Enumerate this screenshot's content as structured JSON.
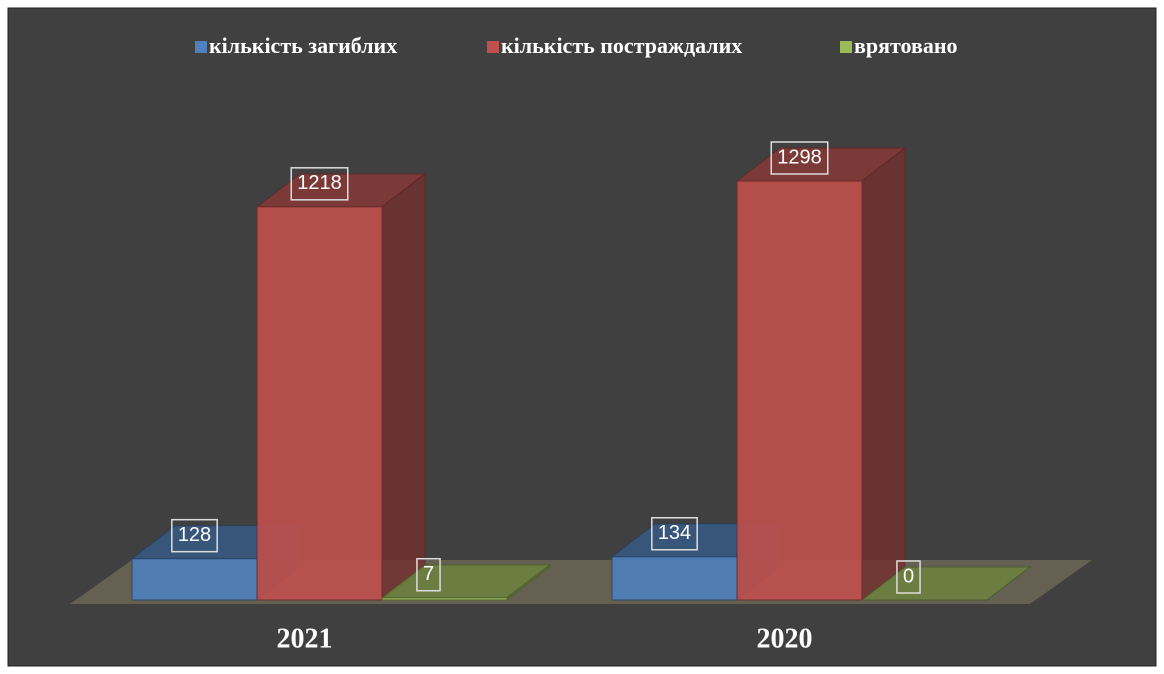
{
  "chart_data": {
    "type": "bar3d",
    "categories": [
      "2021",
      "2020"
    ],
    "series": [
      {
        "name": "кількість загиблих",
        "color": "#4f81bd",
        "values": [
          128,
          134
        ]
      },
      {
        "name": "кількість постраждалих",
        "color": "#c0504d",
        "values": [
          1218,
          1298
        ]
      },
      {
        "name": "врятовано",
        "color": "#9bbb59",
        "values": [
          7,
          0
        ]
      }
    ]
  }
}
